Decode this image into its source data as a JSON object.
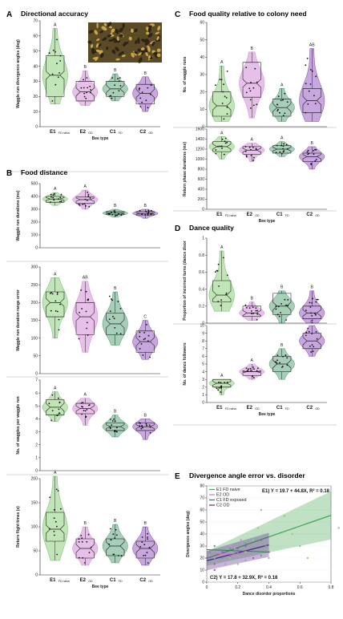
{
  "colors": {
    "E1": "#8fcf7c",
    "E2": "#d18dd6",
    "C1": "#5fa57d",
    "C2": "#9a5cc2",
    "E1_line": "#4caa5a",
    "E2_line": "#c37ad0",
    "C1_line": "#2f7d4f",
    "C2_line": "#5b2a8d"
  },
  "groups": [
    {
      "id": "E1",
      "label": "E1",
      "sub": "FD naive"
    },
    {
      "id": "E2",
      "label": "E2",
      "sub": "OD"
    },
    {
      "id": "C1",
      "label": "C1",
      "sub": "FD"
    },
    {
      "id": "C2",
      "label": "C2",
      "sub": "OD"
    }
  ],
  "x_axis_label": "Bee type",
  "chart_data": [
    {
      "id": "A",
      "type": "violin",
      "letter": "A",
      "title": "Directional accuracy",
      "ylabel": "Waggle run divergence angles (deg)",
      "ylim": [
        0,
        70
      ],
      "ticks": [
        0,
        10,
        20,
        30,
        40,
        50,
        60,
        70
      ],
      "show_xlabels": true,
      "groups": [
        {
          "g": "E1",
          "median": 34,
          "q1": 20,
          "q3": 47,
          "min": 15,
          "max": 65,
          "sig": "A"
        },
        {
          "g": "E2",
          "median": 23,
          "q1": 17,
          "q3": 30,
          "min": 14,
          "max": 37,
          "sig": "B"
        },
        {
          "g": "C1",
          "median": 25,
          "q1": 20,
          "q3": 30,
          "min": 17,
          "max": 35,
          "sig": "B"
        },
        {
          "g": "C2",
          "median": 22,
          "q1": 15,
          "q3": 28,
          "min": 10,
          "max": 33,
          "sig": "B"
        }
      ]
    },
    {
      "id": "B1",
      "type": "violin",
      "letter": "B",
      "title": "Food distance",
      "ylabel": "Waggle run durations (ms)",
      "ylim": [
        0,
        500
      ],
      "ticks": [
        0,
        100,
        200,
        300,
        400,
        500
      ],
      "show_xlabels": false,
      "groups": [
        {
          "g": "E1",
          "median": 380,
          "q1": 355,
          "q3": 400,
          "min": 330,
          "max": 430,
          "sig": "A"
        },
        {
          "g": "E2",
          "median": 375,
          "q1": 345,
          "q3": 395,
          "min": 300,
          "max": 450,
          "sig": "A"
        },
        {
          "g": "C1",
          "median": 270,
          "q1": 258,
          "q3": 282,
          "min": 238,
          "max": 300,
          "sig": "B"
        },
        {
          "g": "C2",
          "median": 268,
          "q1": 256,
          "q3": 282,
          "min": 230,
          "max": 300,
          "sig": "B"
        }
      ]
    },
    {
      "id": "B2",
      "type": "violin",
      "ylabel": "Waggle run duration range error",
      "ylim": [
        0,
        300
      ],
      "ticks": [
        0,
        50,
        100,
        150,
        200,
        250,
        300
      ],
      "show_xlabels": false,
      "groups": [
        {
          "g": "E1",
          "median": 200,
          "q1": 160,
          "q3": 230,
          "min": 100,
          "max": 270,
          "sig": "A"
        },
        {
          "g": "E2",
          "median": 160,
          "q1": 110,
          "q3": 200,
          "min": 60,
          "max": 260,
          "sig": "AB"
        },
        {
          "g": "C1",
          "median": 140,
          "q1": 110,
          "q3": 170,
          "min": 80,
          "max": 230,
          "sig": "B"
        },
        {
          "g": "C2",
          "median": 90,
          "q1": 60,
          "q3": 120,
          "min": 40,
          "max": 150,
          "sig": "C"
        }
      ]
    },
    {
      "id": "B3",
      "type": "violin",
      "ylabel": "No. of waggles per waggle run",
      "ylim": [
        0,
        7
      ],
      "ticks": [
        0,
        1,
        2,
        3,
        4,
        5,
        6,
        7
      ],
      "show_xlabels": false,
      "groups": [
        {
          "g": "E1",
          "median": 4.9,
          "q1": 4.3,
          "q3": 5.5,
          "min": 3.8,
          "max": 6.1,
          "sig": "A"
        },
        {
          "g": "E2",
          "median": 4.8,
          "q1": 4.4,
          "q3": 5.2,
          "min": 3.5,
          "max": 5.6,
          "sig": "A"
        },
        {
          "g": "C1",
          "median": 3.4,
          "q1": 3.1,
          "q3": 3.7,
          "min": 2.6,
          "max": 4.3,
          "sig": "B"
        },
        {
          "g": "C2",
          "median": 3.4,
          "q1": 3.1,
          "q3": 3.7,
          "min": 2.4,
          "max": 4.0,
          "sig": "B"
        }
      ]
    },
    {
      "id": "B4",
      "type": "violin",
      "ylabel": "Return flight times (s)",
      "ylim": [
        0,
        200
      ],
      "ticks": [
        0,
        50,
        100,
        150,
        200
      ],
      "show_xlabels": true,
      "groups": [
        {
          "g": "E1",
          "median": 95,
          "q1": 70,
          "q3": 130,
          "min": 30,
          "max": 205,
          "sig": "A"
        },
        {
          "g": "E2",
          "median": 55,
          "q1": 35,
          "q3": 75,
          "min": 20,
          "max": 100,
          "sig": "B"
        },
        {
          "g": "C1",
          "median": 60,
          "q1": 40,
          "q3": 75,
          "min": 25,
          "max": 105,
          "sig": "B"
        },
        {
          "g": "C2",
          "median": 55,
          "q1": 35,
          "q3": 70,
          "min": 20,
          "max": 100,
          "sig": "B"
        }
      ]
    },
    {
      "id": "C1",
      "type": "violin",
      "letter": "C",
      "title": "Food quality relative to colony need",
      "ylabel": "No. of waggle runs",
      "ylim": [
        0,
        60
      ],
      "ticks": [
        0,
        10,
        20,
        30,
        40,
        50,
        60
      ],
      "show_xlabels": false,
      "groups": [
        {
          "g": "E1",
          "median": 12,
          "q1": 6,
          "q3": 20,
          "min": 3,
          "max": 35,
          "sig": "A"
        },
        {
          "g": "E2",
          "median": 25,
          "q1": 17,
          "q3": 37,
          "min": 5,
          "max": 43,
          "sig": "B"
        },
        {
          "g": "C1",
          "median": 11,
          "q1": 6,
          "q3": 16,
          "min": 3,
          "max": 22,
          "sig": "A"
        },
        {
          "g": "C2",
          "median": 15,
          "q1": 8,
          "q3": 22,
          "min": 3,
          "max": 45,
          "sig": "AB"
        }
      ]
    },
    {
      "id": "C2",
      "type": "violin",
      "ylabel": "Return phase durations (ms)",
      "ylim": [
        0,
        1600
      ],
      "ticks": [
        0,
        200,
        400,
        600,
        800,
        1000,
        1200,
        1400,
        1600
      ],
      "show_xlabels": true,
      "groups": [
        {
          "g": "E1",
          "median": 1250,
          "q1": 1150,
          "q3": 1350,
          "min": 1000,
          "max": 1450,
          "sig": "A"
        },
        {
          "g": "E2",
          "median": 1180,
          "q1": 1100,
          "q3": 1250,
          "min": 950,
          "max": 1320,
          "sig": "A"
        },
        {
          "g": "C1",
          "median": 1200,
          "q1": 1120,
          "q3": 1270,
          "min": 1050,
          "max": 1350,
          "sig": "A"
        },
        {
          "g": "C2",
          "median": 1050,
          "q1": 950,
          "q3": 1120,
          "min": 800,
          "max": 1250,
          "sig": "B"
        }
      ]
    },
    {
      "id": "D1",
      "type": "violin",
      "letter": "D",
      "title": "Dance quality",
      "ylabel": "Proportion of incorrect turns (dance disor",
      "ylim": [
        0,
        1
      ],
      "ticks": [
        0,
        0.2,
        0.4,
        0.6,
        0.8,
        1
      ],
      "show_xlabels": false,
      "groups": [
        {
          "g": "E1",
          "median": 0.33,
          "q1": 0.25,
          "q3": 0.5,
          "min": 0.14,
          "max": 0.85,
          "sig": "A"
        },
        {
          "g": "E2",
          "median": 0.12,
          "q1": 0.08,
          "q3": 0.2,
          "min": 0.03,
          "max": 0.25,
          "sig": "B"
        },
        {
          "g": "C1",
          "median": 0.2,
          "q1": 0.1,
          "q3": 0.35,
          "min": 0.0,
          "max": 0.38,
          "sig": "B"
        },
        {
          "g": "C2",
          "median": 0.12,
          "q1": 0.05,
          "q3": 0.2,
          "min": 0.0,
          "max": 0.38,
          "sig": "B"
        }
      ]
    },
    {
      "id": "D2",
      "type": "violin",
      "ylabel": "No. of dance followers",
      "ylim": [
        0,
        10
      ],
      "ticks": [
        0,
        1,
        2,
        3,
        4,
        5,
        6,
        7,
        8,
        9,
        10
      ],
      "show_xlabels": true,
      "groups": [
        {
          "g": "E1",
          "median": 2.5,
          "q1": 2,
          "q3": 3,
          "min": 1,
          "max": 3,
          "sig": "A"
        },
        {
          "g": "E2",
          "median": 4,
          "q1": 3.5,
          "q3": 4,
          "min": 3,
          "max": 5,
          "sig": "A"
        },
        {
          "g": "C1",
          "median": 5,
          "q1": 4,
          "q3": 6,
          "min": 3,
          "max": 7,
          "sig": "B"
        },
        {
          "g": "C2",
          "median": 8,
          "q1": 7,
          "q3": 9,
          "min": 6,
          "max": 10,
          "sig": "C"
        }
      ]
    },
    {
      "id": "E",
      "type": "scatter",
      "letter": "E",
      "title": "Divergence angle error vs. disorder",
      "xlabel": "Dance disorder proportions",
      "ylabel": "Divergence angles (deg)",
      "xlim": [
        0,
        0.8
      ],
      "ylim": [
        0,
        80
      ],
      "xticks": [
        0,
        0.2,
        0.4,
        0.6,
        0.8
      ],
      "yticks": [
        0,
        10,
        20,
        30,
        40,
        50,
        60,
        70,
        80
      ],
      "legend": [
        "E1 FD naive",
        "E2 OD",
        "C1 FD exposed",
        "C2 OD"
      ],
      "equations": [
        {
          "text": "E1) Y = 19.7 + 44.8X, R² = 0.18",
          "intercept": 19.7,
          "slope": 44.8,
          "x": [
            0,
            0.85
          ]
        },
        {
          "text": "C2) Y = 17.8 + 32.9X, R² = 0.18",
          "intercept": 17.8,
          "slope": 32.9,
          "x": [
            0,
            0.4
          ]
        }
      ],
      "points": {
        "E1": [
          [
            0.15,
            20
          ],
          [
            0.25,
            25
          ],
          [
            0.3,
            35
          ],
          [
            0.33,
            45
          ],
          [
            0.4,
            20
          ],
          [
            0.5,
            55
          ],
          [
            0.55,
            40
          ],
          [
            0.6,
            30
          ],
          [
            0.65,
            20
          ],
          [
            0.85,
            45
          ],
          [
            0.2,
            15
          ],
          [
            0.35,
            60
          ]
        ],
        "E2": [
          [
            0.05,
            20
          ],
          [
            0.1,
            25
          ],
          [
            0.12,
            15
          ],
          [
            0.15,
            30
          ],
          [
            0.18,
            28
          ],
          [
            0.2,
            22
          ],
          [
            0.22,
            35
          ],
          [
            0.25,
            18
          ]
        ],
        "C1": [
          [
            0.02,
            25
          ],
          [
            0.05,
            30
          ],
          [
            0.1,
            20
          ],
          [
            0.15,
            28
          ],
          [
            0.2,
            24
          ],
          [
            0.25,
            32
          ],
          [
            0.3,
            26
          ],
          [
            0.35,
            22
          ],
          [
            0.38,
            30
          ]
        ],
        "C2": [
          [
            0.0,
            20
          ],
          [
            0.05,
            15
          ],
          [
            0.1,
            25
          ],
          [
            0.15,
            22
          ],
          [
            0.2,
            28
          ],
          [
            0.25,
            30
          ],
          [
            0.3,
            20
          ],
          [
            0.35,
            35
          ],
          [
            0.4,
            25
          ],
          [
            0.05,
            10
          ]
        ]
      }
    }
  ]
}
